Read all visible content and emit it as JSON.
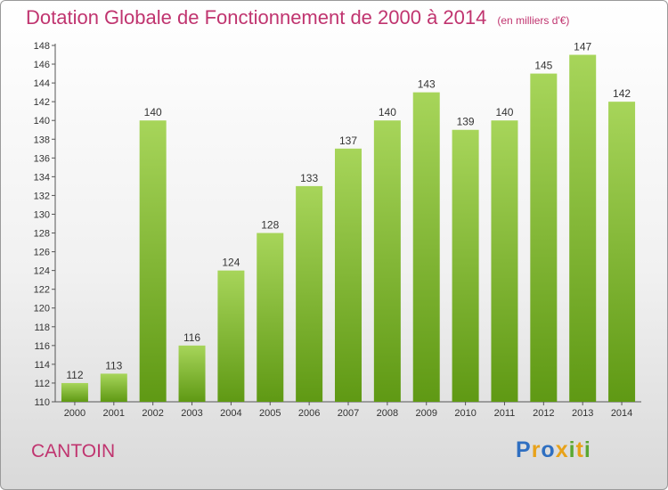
{
  "header": {
    "title": "Dotation Globale de Fonctionnement de 2000 à 2014",
    "unit": "(en milliers d'€)"
  },
  "place": "CANTOIN",
  "logo": {
    "letters": [
      "P",
      "r",
      "o",
      "x",
      "i",
      "t",
      "i"
    ],
    "colors": [
      "#2f6fc1",
      "#e8a21a",
      "#2f6fc1",
      "#e8a21a",
      "#5aa832",
      "#e8a21a",
      "#5aa832"
    ]
  },
  "colors": {
    "title": "#c0346f",
    "bar_light": "#a7d55a",
    "bar_dark": "#5f9914"
  },
  "chart_data": {
    "type": "bar",
    "categories": [
      "2000",
      "2001",
      "2002",
      "2003",
      "2004",
      "2005",
      "2006",
      "2007",
      "2008",
      "2009",
      "2010",
      "2011",
      "2012",
      "2013",
      "2014"
    ],
    "values": [
      112,
      113,
      140,
      116,
      124,
      128,
      133,
      137,
      140,
      143,
      139,
      140,
      145,
      147,
      142
    ],
    "data_labels": [
      "112",
      "113",
      "140",
      "116",
      "124",
      "128",
      "133",
      "137",
      "140",
      "143",
      "139",
      "140",
      "145",
      "147",
      "142"
    ],
    "ylim": [
      110,
      148
    ],
    "yticks": [
      "110",
      "112",
      "114",
      "116",
      "118",
      "120",
      "122",
      "124",
      "126",
      "128",
      "130",
      "132",
      "134",
      "136",
      "138",
      "140",
      "142",
      "144",
      "146",
      "148"
    ],
    "grid": false,
    "legend": "none"
  }
}
